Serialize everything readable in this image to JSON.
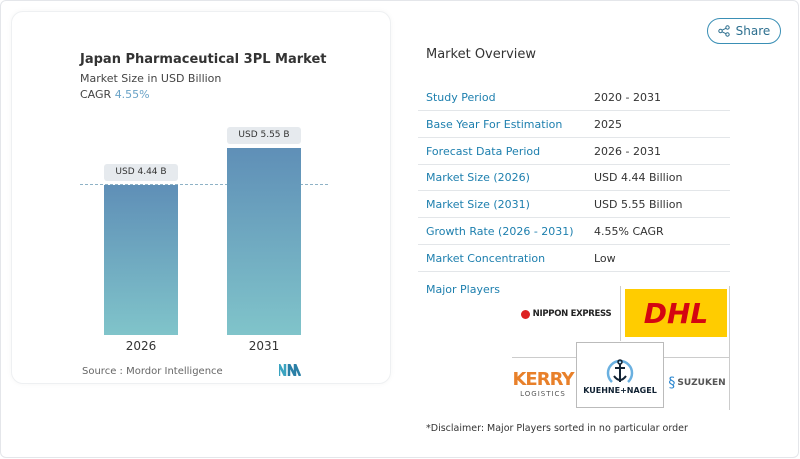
{
  "chart_data": {
    "type": "bar",
    "title": "Japan Pharmaceutical 3PL Market",
    "subtitle": "Market Size in USD Billion",
    "cagr_label": "CAGR",
    "cagr_value": "4.55%",
    "categories": [
      "2026",
      "2031"
    ],
    "values": [
      4.44,
      5.55
    ],
    "data_labels": [
      "USD 4.44 B",
      "USD 5.55 B"
    ],
    "bar_colors": [
      "#5f8fb7",
      "#80c4ca"
    ],
    "source": "Source :  Mordor Intelligence"
  },
  "share_label": "Share",
  "overview": {
    "title": "Market Overview",
    "rows": [
      {
        "label": "Study Period",
        "value": "2020 - 2031"
      },
      {
        "label": "Base Year For Estimation",
        "value": "2025"
      },
      {
        "label": "Forecast Data Period",
        "value": "2026 - 2031"
      },
      {
        "label": "Market Size (2026)",
        "value": "USD 4.44 Billion"
      },
      {
        "label": "Market Size (2031)",
        "value": "USD 5.55 Billion"
      },
      {
        "label": "Growth Rate (2026 - 2031)",
        "value": "4.55% CAGR"
      },
      {
        "label": "Market Concentration",
        "value": "Low"
      }
    ],
    "major_players_label": "Major Players",
    "players": [
      "NIPPON EXPRESS",
      "DHL",
      "KERRY LOGISTICS",
      "KUEHNE+NAGEL",
      "SUZUKEN"
    ],
    "disclaimer": "*Disclaimer: Major Players sorted in no particular order"
  }
}
